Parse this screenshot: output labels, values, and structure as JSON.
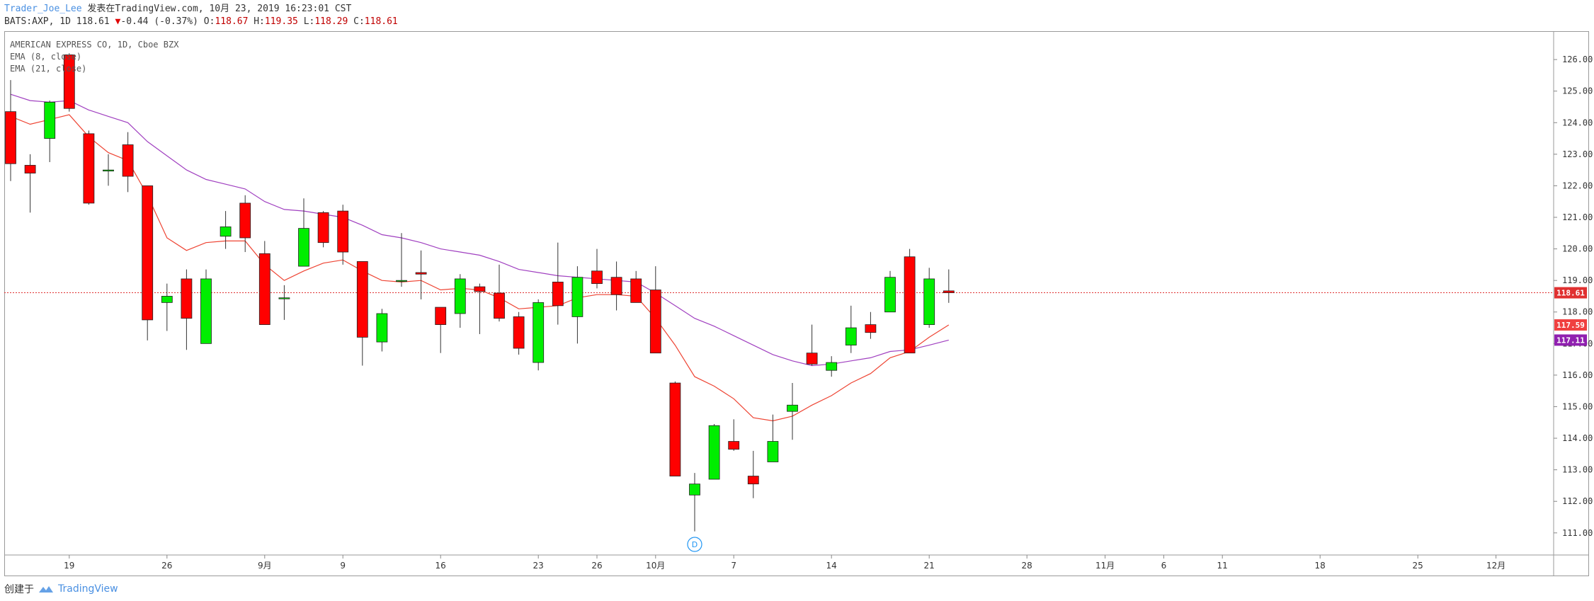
{
  "header": {
    "author": "Trader_Joe_Lee",
    "published": "发表在TradingView.com, 10月 23, 2019 16:23:01 CST",
    "symbol_prefix": "BATS:AXP, 1D 118.61",
    "change_arrow": "▼",
    "change": "-0.44 (-0.37%)",
    "o_label": "O:",
    "o_value": "118.67",
    "h_label": "H:",
    "h_value": "119.35",
    "l_label": "L:",
    "l_value": "118.29",
    "c_label": "C:",
    "c_value": "118.61"
  },
  "legend": {
    "title": "AMERICAN EXPRESS CO, 1D, Cboe BZX",
    "ema1": "EMA (8, close)",
    "ema2": "EMA (21, close)"
  },
  "footer": {
    "created_with": "创建于",
    "brand": "TradingView"
  },
  "colors": {
    "up": "#00ee00",
    "down": "#ff0000",
    "ema8": "#ee4433",
    "ema21": "#a040c0",
    "last_price": "#e03030",
    "ema8_tag": "#f04040",
    "ema21_tag": "#9020b0"
  },
  "chart_data": {
    "type": "candlestick",
    "y_axis": {
      "min": 110.3,
      "max": 126.9,
      "ticks": [
        "111.00",
        "112.00",
        "113.00",
        "114.00",
        "115.00",
        "116.00",
        "117.00",
        "118.00",
        "119.00",
        "120.00",
        "121.00",
        "122.00",
        "123.00",
        "124.00",
        "125.00",
        "126.00"
      ]
    },
    "x_axis": {
      "labels": [
        {
          "text": "19",
          "slot": 3
        },
        {
          "text": "26",
          "slot": 8
        },
        {
          "text": "9月",
          "slot": 13
        },
        {
          "text": "9",
          "slot": 17
        },
        {
          "text": "16",
          "slot": 22
        },
        {
          "text": "23",
          "slot": 27
        },
        {
          "text": "26",
          "slot": 30
        },
        {
          "text": "10月",
          "slot": 33
        },
        {
          "text": "7",
          "slot": 37
        },
        {
          "text": "14",
          "slot": 42
        },
        {
          "text": "21",
          "slot": 47
        },
        {
          "text": "28",
          "slot": 52
        },
        {
          "text": "11月",
          "slot": 56
        },
        {
          "text": "6",
          "slot": 59
        },
        {
          "text": "11",
          "slot": 62
        },
        {
          "text": "18",
          "slot": 67
        },
        {
          "text": "25",
          "slot": 72
        },
        {
          "text": "12月",
          "slot": 76
        }
      ]
    },
    "candles": [
      {
        "o": 124.35,
        "h": 125.35,
        "l": 122.15,
        "c": 122.7
      },
      {
        "o": 122.65,
        "h": 123.0,
        "l": 121.15,
        "c": 122.4
      },
      {
        "o": 123.5,
        "h": 124.7,
        "l": 122.75,
        "c": 124.65
      },
      {
        "o": 126.15,
        "h": 126.2,
        "l": 124.35,
        "c": 124.45
      },
      {
        "o": 123.65,
        "h": 123.75,
        "l": 121.4,
        "c": 121.45
      },
      {
        "o": 122.5,
        "h": 123.0,
        "l": 122.0,
        "c": 122.5
      },
      {
        "o": 123.3,
        "h": 123.7,
        "l": 121.8,
        "c": 122.3
      },
      {
        "o": 122.0,
        "h": 122.0,
        "l": 117.1,
        "c": 117.75
      },
      {
        "o": 118.3,
        "h": 118.9,
        "l": 117.4,
        "c": 118.5
      },
      {
        "o": 119.05,
        "h": 119.35,
        "l": 116.8,
        "c": 117.8
      },
      {
        "o": 117.0,
        "h": 119.35,
        "l": 117.0,
        "c": 119.05
      },
      {
        "o": 120.4,
        "h": 121.2,
        "l": 120.0,
        "c": 120.7
      },
      {
        "o": 121.45,
        "h": 121.7,
        "l": 119.9,
        "c": 120.35
      },
      {
        "o": 119.85,
        "h": 120.25,
        "l": 117.6,
        "c": 117.6
      },
      {
        "o": 118.45,
        "h": 118.85,
        "l": 117.75,
        "c": 118.45
      },
      {
        "o": 119.45,
        "h": 121.6,
        "l": 119.45,
        "c": 120.65
      },
      {
        "o": 121.15,
        "h": 121.2,
        "l": 120.05,
        "c": 120.2
      },
      {
        "o": 121.2,
        "h": 121.4,
        "l": 119.5,
        "c": 119.9
      },
      {
        "o": 119.6,
        "h": 119.6,
        "l": 116.3,
        "c": 117.2
      },
      {
        "o": 117.05,
        "h": 118.1,
        "l": 116.75,
        "c": 117.95
      },
      {
        "o": 119.0,
        "h": 120.5,
        "l": 118.8,
        "c": 119.0
      },
      {
        "o": 119.25,
        "h": 119.95,
        "l": 118.4,
        "c": 119.2
      },
      {
        "o": 118.15,
        "h": 118.15,
        "l": 116.7,
        "c": 117.6
      },
      {
        "o": 117.95,
        "h": 119.2,
        "l": 117.5,
        "c": 119.05
      },
      {
        "o": 118.8,
        "h": 118.9,
        "l": 117.3,
        "c": 118.65
      },
      {
        "o": 118.6,
        "h": 119.5,
        "l": 117.7,
        "c": 117.8
      },
      {
        "o": 117.85,
        "h": 118.0,
        "l": 116.65,
        "c": 116.85
      },
      {
        "o": 116.4,
        "h": 118.4,
        "l": 116.15,
        "c": 118.3
      },
      {
        "o": 118.95,
        "h": 120.2,
        "l": 117.6,
        "c": 118.2
      },
      {
        "o": 117.85,
        "h": 119.45,
        "l": 117.0,
        "c": 119.1
      },
      {
        "o": 119.3,
        "h": 120.0,
        "l": 118.75,
        "c": 118.9
      },
      {
        "o": 119.1,
        "h": 119.6,
        "l": 118.05,
        "c": 118.55
      },
      {
        "o": 119.05,
        "h": 119.3,
        "l": 118.3,
        "c": 118.3
      },
      {
        "o": 118.7,
        "h": 119.45,
        "l": 116.7,
        "c": 116.7
      },
      {
        "o": 115.75,
        "h": 115.8,
        "l": 112.8,
        "c": 112.8
      },
      {
        "o": 112.2,
        "h": 112.9,
        "l": 111.05,
        "c": 112.55
      },
      {
        "o": 112.7,
        "h": 114.45,
        "l": 112.7,
        "c": 114.4
      },
      {
        "o": 113.9,
        "h": 114.6,
        "l": 113.6,
        "c": 113.65
      },
      {
        "o": 112.8,
        "h": 113.6,
        "l": 112.1,
        "c": 112.55
      },
      {
        "o": 113.25,
        "h": 114.75,
        "l": 113.25,
        "c": 113.9
      },
      {
        "o": 114.85,
        "h": 115.75,
        "l": 113.95,
        "c": 115.05
      },
      {
        "o": 116.7,
        "h": 117.6,
        "l": 116.3,
        "c": 116.35
      },
      {
        "o": 116.15,
        "h": 116.6,
        "l": 115.95,
        "c": 116.4
      },
      {
        "o": 116.95,
        "h": 118.2,
        "l": 116.7,
        "c": 117.5
      },
      {
        "o": 117.6,
        "h": 118.0,
        "l": 117.15,
        "c": 117.35
      },
      {
        "o": 118.0,
        "h": 119.3,
        "l": 118.0,
        "c": 119.1
      },
      {
        "o": 119.75,
        "h": 120.0,
        "l": 116.7,
        "c": 116.7
      },
      {
        "o": 117.6,
        "h": 119.4,
        "l": 117.5,
        "c": 119.05
      },
      {
        "o": 118.67,
        "h": 119.35,
        "l": 118.29,
        "c": 118.61
      }
    ],
    "ema8": [
      124.2,
      123.95,
      124.1,
      124.25,
      123.55,
      123.05,
      122.8,
      121.7,
      120.35,
      119.95,
      120.2,
      120.25,
      120.25,
      119.5,
      119.0,
      119.3,
      119.55,
      119.65,
      119.3,
      119.0,
      118.95,
      119.0,
      118.7,
      118.75,
      118.7,
      118.45,
      118.1,
      118.15,
      118.2,
      118.45,
      118.55,
      118.55,
      118.5,
      117.8,
      116.95,
      115.95,
      115.65,
      115.25,
      114.65,
      114.55,
      114.7,
      115.05,
      115.35,
      115.75,
      116.05,
      116.55,
      116.75,
      117.2,
      117.59
    ],
    "ema21": [
      124.9,
      124.7,
      124.65,
      124.7,
      124.4,
      124.2,
      124.0,
      123.4,
      122.95,
      122.5,
      122.2,
      122.05,
      121.9,
      121.5,
      121.25,
      121.2,
      121.1,
      121.0,
      120.75,
      120.45,
      120.35,
      120.2,
      120.0,
      119.9,
      119.8,
      119.6,
      119.35,
      119.25,
      119.15,
      119.1,
      119.05,
      119.0,
      118.95,
      118.6,
      118.2,
      117.8,
      117.55,
      117.25,
      116.95,
      116.65,
      116.45,
      116.3,
      116.35,
      116.45,
      116.55,
      116.75,
      116.8,
      116.95,
      117.11
    ],
    "last_price": "118.61",
    "ema8_last": "117.59",
    "ema21_last": "117.11",
    "marker": {
      "text": "D",
      "slot": 35
    }
  }
}
